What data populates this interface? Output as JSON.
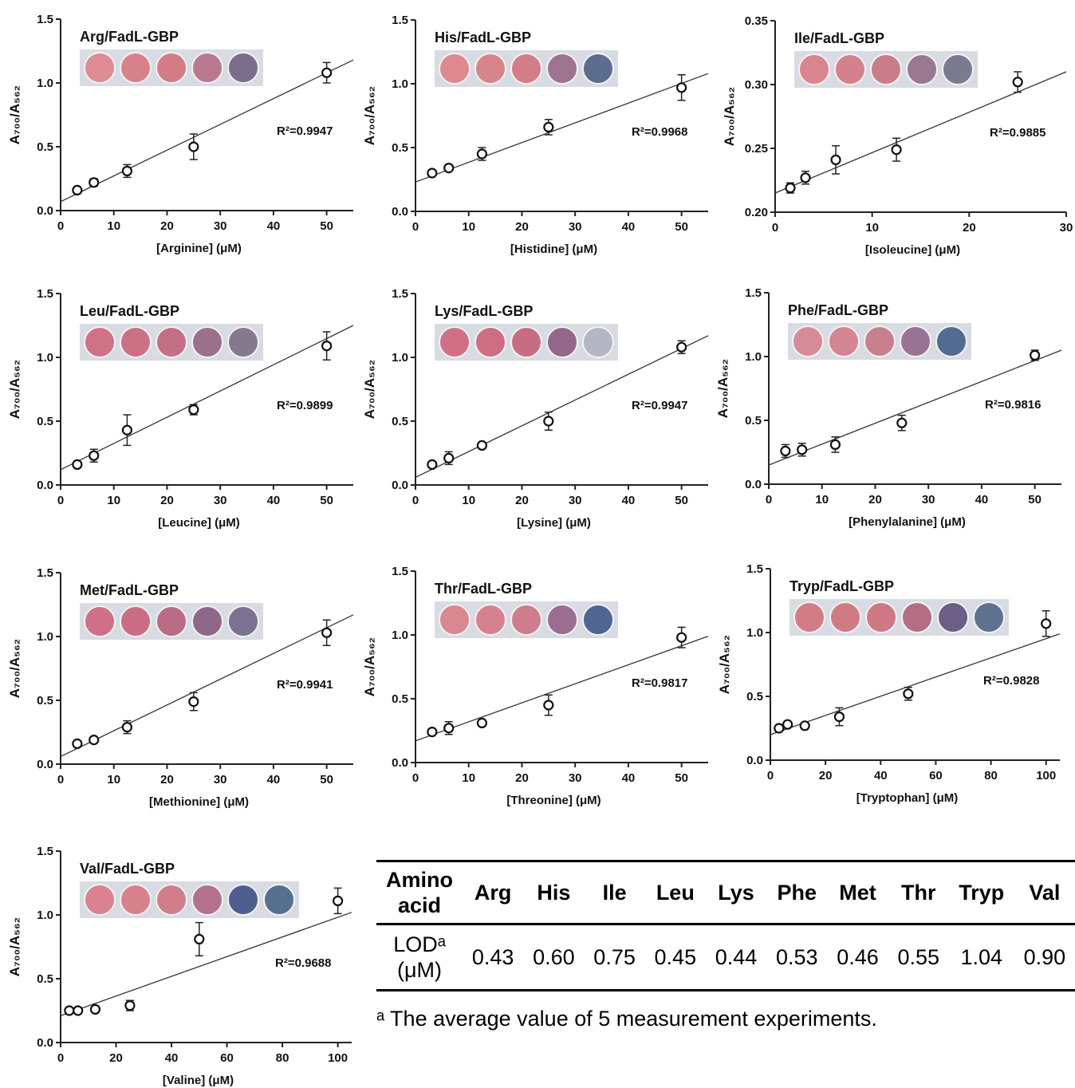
{
  "chart_data": [
    {
      "type": "scatter",
      "title": "Arg/FadL-GBP",
      "x_label": "[Arginine] (μM)",
      "y_label": "A₇₀₀/A₅₆₂",
      "annotation": "R²=0.9947",
      "x": [
        3.125,
        6.25,
        12.5,
        25,
        50
      ],
      "values": [
        0.16,
        0.22,
        0.31,
        0.5,
        1.08
      ],
      "errors": [
        0.02,
        0.03,
        0.05,
        0.1,
        0.08
      ],
      "fit": {
        "x": [
          0,
          55
        ],
        "y": [
          0.07,
          1.18
        ]
      },
      "xlim": [
        0,
        55
      ],
      "xticks": [
        0,
        10,
        20,
        30,
        40,
        50
      ],
      "ylim": [
        0,
        1.5
      ],
      "yticks": [
        {
          "value": 0,
          "label": "0.0"
        },
        0.5,
        {
          "value": 1,
          "label": "1.0"
        },
        1.5
      ],
      "well_colors": [
        "#dc8c92",
        "#d7828a",
        "#d27c86",
        "#b97a90",
        "#7c6c8c"
      ]
    },
    {
      "type": "scatter",
      "title": "His/FadL-GBP",
      "x_label": "[Histidine] (μM)",
      "y_label": "A₇₀₀/A₅₆₂",
      "annotation": "R²=0.9968",
      "x": [
        3.125,
        6.25,
        12.5,
        25,
        50
      ],
      "values": [
        0.3,
        0.34,
        0.45,
        0.66,
        0.97
      ],
      "errors": [
        0.02,
        0.02,
        0.05,
        0.06,
        0.1
      ],
      "fit": {
        "x": [
          0,
          55
        ],
        "y": [
          0.23,
          1.08
        ]
      },
      "xlim": [
        0,
        55
      ],
      "xticks": [
        0,
        10,
        20,
        30,
        40,
        50
      ],
      "ylim": [
        0,
        1.5
      ],
      "yticks": [
        {
          "value": 0,
          "label": "0.0"
        },
        0.5,
        {
          "value": 1,
          "label": "1.0"
        },
        1.5
      ],
      "well_colors": [
        "#dc8a90",
        "#d8848b",
        "#d27d88",
        "#9e7390",
        "#5c6d8f"
      ]
    },
    {
      "type": "scatter",
      "title": "Ile/FadL-GBP",
      "x_label": "[Isoleucine] (μM)",
      "y_label": "A₇₀₀/A₅₆₂",
      "annotation": "R²=0.9885",
      "x": [
        1.5625,
        3.125,
        6.25,
        12.5,
        25
      ],
      "values": [
        0.219,
        0.227,
        0.241,
        0.249,
        0.302
      ],
      "errors": [
        0.004,
        0.005,
        0.011,
        0.009,
        0.008
      ],
      "fit": {
        "x": [
          0,
          30
        ],
        "y": [
          0.215,
          0.31
        ]
      },
      "xlim": [
        0,
        30
      ],
      "xticks": [
        0,
        10,
        20,
        30
      ],
      "ylim": [
        0.2,
        0.35
      ],
      "yticks": [
        {
          "value": 0.2,
          "label": "0.20"
        },
        0.25,
        {
          "value": 0.3,
          "label": "0.30"
        },
        0.35
      ],
      "well_colors": [
        "#d8858f",
        "#d5818b",
        "#c97c8a",
        "#9a7890",
        "#7c7a90"
      ]
    },
    {
      "type": "scatter",
      "title": "Leu/FadL-GBP",
      "x_label": "[Leucine] (μM)",
      "y_label": "A₇₀₀/A₅₆₂",
      "annotation": "R²=0.9899",
      "x": [
        3.125,
        6.25,
        12.5,
        25,
        50
      ],
      "values": [
        0.16,
        0.23,
        0.43,
        0.59,
        1.09
      ],
      "errors": [
        0.02,
        0.05,
        0.12,
        0.04,
        0.11
      ],
      "fit": {
        "x": [
          0,
          55
        ],
        "y": [
          0.12,
          1.25
        ]
      },
      "xlim": [
        0,
        55
      ],
      "xticks": [
        0,
        10,
        20,
        30,
        40,
        50
      ],
      "ylim": [
        0,
        1.5
      ],
      "yticks": [
        {
          "value": 0,
          "label": "0.0"
        },
        0.5,
        {
          "value": 1,
          "label": "1.0"
        },
        1.5
      ],
      "well_colors": [
        "#cf7288",
        "#cc7086",
        "#c46f86",
        "#9c6f8a",
        "#85788f"
      ]
    },
    {
      "type": "scatter",
      "title": "Lys/FadL-GBP",
      "x_label": "[Lysine] (μM)",
      "y_label": "A₇₀₀/A₅₆₂",
      "annotation": "R²=0.9947",
      "x": [
        3.125,
        6.25,
        12.5,
        25,
        50
      ],
      "values": [
        0.16,
        0.21,
        0.31,
        0.5,
        1.08
      ],
      "errors": [
        0.02,
        0.05,
        0.02,
        0.07,
        0.05
      ],
      "fit": {
        "x": [
          0,
          55
        ],
        "y": [
          0.06,
          1.17
        ]
      },
      "xlim": [
        0,
        55
      ],
      "xticks": [
        0,
        10,
        20,
        30,
        40,
        50
      ],
      "ylim": [
        0,
        1.5
      ],
      "yticks": [
        {
          "value": 0,
          "label": "0.0"
        },
        0.5,
        {
          "value": 1,
          "label": "1.0"
        },
        1.5
      ],
      "well_colors": [
        "#d06f86",
        "#cd6e84",
        "#c66d84",
        "#94668a",
        "#b4b6c4"
      ]
    },
    {
      "type": "scatter",
      "title": "Phe/FadL-GBP",
      "x_label": "[Phenylalanine] (μM)",
      "y_label": "A₇₀₀/A₅₆₂",
      "annotation": "R²=0.9816",
      "x": [
        3.125,
        6.25,
        12.5,
        25,
        50
      ],
      "values": [
        0.26,
        0.27,
        0.31,
        0.48,
        1.01
      ],
      "errors": [
        0.05,
        0.05,
        0.06,
        0.06,
        0.04
      ],
      "fit": {
        "x": [
          0,
          55
        ],
        "y": [
          0.15,
          1.05
        ]
      },
      "xlim": [
        0,
        55
      ],
      "xticks": [
        0,
        10,
        20,
        30,
        40,
        50
      ],
      "ylim": [
        0,
        1.5
      ],
      "yticks": [
        {
          "value": 0,
          "label": "0.0"
        },
        0.5,
        {
          "value": 1,
          "label": "1.0"
        },
        1.5
      ],
      "well_colors": [
        "#d68c98",
        "#d38591",
        "#c88090",
        "#9a7394",
        "#536b92"
      ]
    },
    {
      "type": "scatter",
      "title": "Met/FadL-GBP",
      "x_label": "[Methionine] (μM)",
      "y_label": "A₇₀₀/A₅₆₂",
      "annotation": "R²=0.9941",
      "x": [
        3.125,
        6.25,
        12.5,
        25,
        50
      ],
      "values": [
        0.16,
        0.19,
        0.29,
        0.49,
        1.03
      ],
      "errors": [
        0.02,
        0.02,
        0.05,
        0.07,
        0.1
      ],
      "fit": {
        "x": [
          0,
          55
        ],
        "y": [
          0.06,
          1.17
        ]
      },
      "xlim": [
        0,
        55
      ],
      "xticks": [
        0,
        10,
        20,
        30,
        40,
        50
      ],
      "ylim": [
        0,
        1.5
      ],
      "yticks": [
        {
          "value": 0,
          "label": "0.0"
        },
        0.5,
        {
          "value": 1,
          "label": "1.0"
        },
        1.5
      ],
      "well_colors": [
        "#cd7088",
        "#c96e86",
        "#b86c86",
        "#8f6888",
        "#7a7290"
      ]
    },
    {
      "type": "scatter",
      "title": "Thr/FadL-GBP",
      "x_label": "[Threonine] (μM)",
      "y_label": "A₇₀₀/A₅₆₂",
      "annotation": "R²=0.9817",
      "x": [
        3.125,
        6.25,
        12.5,
        25,
        50
      ],
      "values": [
        0.24,
        0.27,
        0.31,
        0.45,
        0.98
      ],
      "errors": [
        0.02,
        0.05,
        0.02,
        0.08,
        0.08
      ],
      "fit": {
        "x": [
          0,
          55
        ],
        "y": [
          0.17,
          0.99
        ]
      },
      "xlim": [
        0,
        55
      ],
      "xticks": [
        0,
        10,
        20,
        30,
        40,
        50
      ],
      "ylim": [
        0,
        1.5
      ],
      "yticks": [
        {
          "value": 0,
          "label": "0.0"
        },
        0.5,
        {
          "value": 1,
          "label": "1.0"
        },
        1.5
      ],
      "well_colors": [
        "#d98791",
        "#d6828c",
        "#cd7e8c",
        "#9a6f92",
        "#4f6693"
      ]
    },
    {
      "type": "scatter",
      "title": "Tryp/FadL-GBP",
      "x_label": "[Tryptophan] (μM)",
      "y_label": "A₇₀₀/A₅₆₂",
      "annotation": "R²=0.9828",
      "x": [
        3.125,
        6.25,
        12.5,
        25,
        50,
        100
      ],
      "values": [
        0.25,
        0.28,
        0.27,
        0.34,
        0.52,
        1.07
      ],
      "errors": [
        0.02,
        0.02,
        0.02,
        0.07,
        0.05,
        0.1
      ],
      "fit": {
        "x": [
          0,
          105
        ],
        "y": [
          0.2,
          0.99
        ]
      },
      "xlim": [
        0,
        105
      ],
      "xticks": [
        0,
        20,
        40,
        60,
        80,
        100
      ],
      "ylim": [
        0,
        1.5
      ],
      "yticks": [
        {
          "value": 0,
          "label": "0.0"
        },
        0.5,
        {
          "value": 1,
          "label": "1.0"
        },
        1.5
      ],
      "well_colors": [
        "#d27d86",
        "#d07a84",
        "#cd7884",
        "#b46e84",
        "#6c5f86",
        "#5f7190"
      ]
    },
    {
      "type": "scatter",
      "title": "Val/FadL-GBP",
      "x_label": "[Valine] (μM)",
      "y_label": "A₇₀₀/A₅₆₂",
      "annotation": "R²=0.9688",
      "x": [
        3.125,
        6.25,
        12.5,
        25,
        50,
        100
      ],
      "values": [
        0.25,
        0.25,
        0.26,
        0.29,
        0.81,
        1.11
      ],
      "errors": [
        0.01,
        0.01,
        0.02,
        0.04,
        0.13,
        0.1
      ],
      "fit": {
        "x": [
          0,
          105
        ],
        "y": [
          0.21,
          1.02
        ]
      },
      "xlim": [
        0,
        105
      ],
      "xticks": [
        0,
        20,
        40,
        60,
        80,
        100
      ],
      "ylim": [
        0,
        1.5
      ],
      "yticks": [
        {
          "value": 0,
          "label": "0.0"
        },
        0.5,
        {
          "value": 1,
          "label": "1.0"
        },
        1.5
      ],
      "well_colors": [
        "#d8838d",
        "#d6818b",
        "#d07f8a",
        "#b4728c",
        "#4d5f8e",
        "#56708f"
      ]
    }
  ],
  "table": {
    "header": [
      "Amino acid",
      "Arg",
      "His",
      "Ile",
      "Leu",
      "Lys",
      "Phe",
      "Met",
      "Thr",
      "Tryp",
      "Val"
    ],
    "rows": [
      [
        "LODᵃ (μM)",
        "0.43",
        "0.60",
        "0.75",
        "0.45",
        "0.44",
        "0.53",
        "0.46",
        "0.55",
        "1.04",
        "0.90"
      ]
    ]
  },
  "footnote": "ᵃ The average value of 5 measurement experiments."
}
